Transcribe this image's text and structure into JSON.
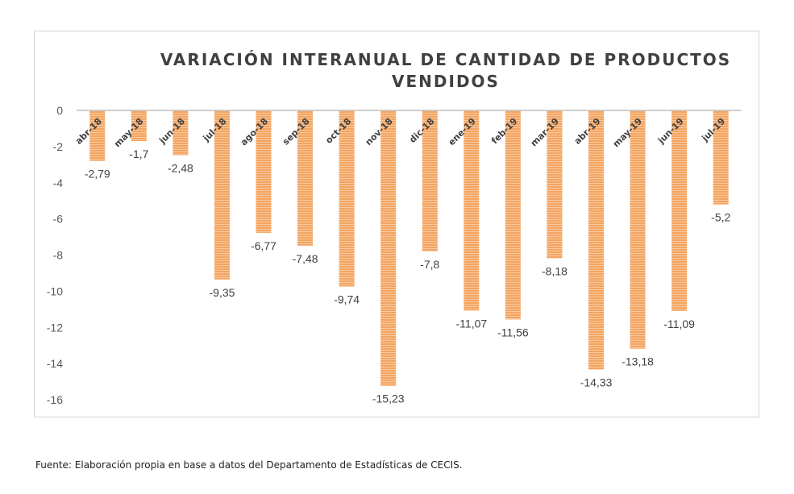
{
  "chart_data": {
    "type": "bar",
    "title_line1": "VARIACIÓN INTERANUAL DE CANTIDAD DE PRODUCTOS",
    "title_line2": "VENDIDOS",
    "categories": [
      "abr-18",
      "may-18",
      "jun-18",
      "jul-18",
      "ago-18",
      "sep-18",
      "oct-18",
      "nov-18",
      "dic-18",
      "ene-19",
      "feb-19",
      "mar-19",
      "abr-19",
      "may-19",
      "jun-19",
      "jul-19"
    ],
    "values": [
      -2.79,
      -1.7,
      -2.48,
      -9.35,
      -6.77,
      -7.48,
      -9.74,
      -15.23,
      -7.8,
      -11.07,
      -11.56,
      -8.18,
      -14.33,
      -13.18,
      -11.09,
      -5.2
    ],
    "data_labels": [
      "-2,79",
      "-1,7",
      "-2,48",
      "-9,35",
      "-6,77",
      "-7,48",
      "-9,74",
      "-15,23",
      "-7,8",
      "-11,07",
      "-11,56",
      "-8,18",
      "-14,33",
      "-13,18",
      "-11,09",
      "-5,2"
    ],
    "y_ticks": [
      "0",
      "-2",
      "-4",
      "-6",
      "-8",
      "-10",
      "-12",
      "-14",
      "-16"
    ],
    "ylim": [
      -16,
      0
    ],
    "bar_color": "#f4a460",
    "bar_stripe_color": "#f8c9a0",
    "grid": false,
    "legend": "none"
  },
  "source_note": "Fuente: Elaboración propia en base a datos del Departamento de Estadísticas de CECIS."
}
